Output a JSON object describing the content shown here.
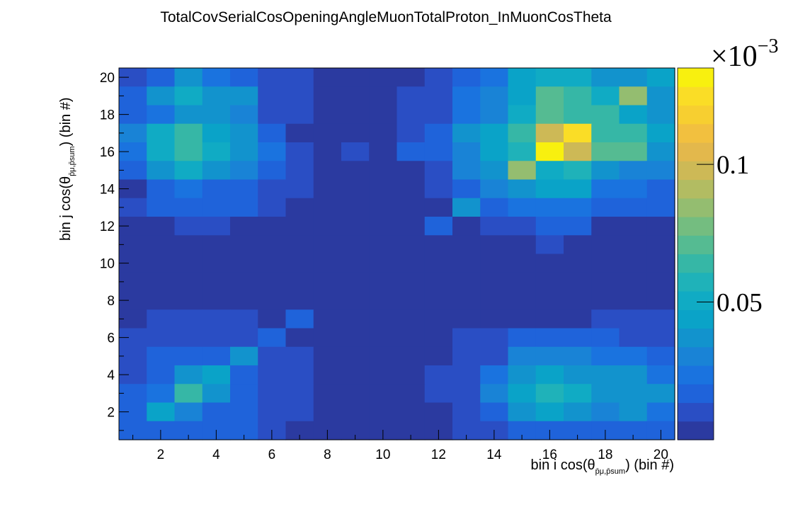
{
  "chart_data": {
    "type": "heatmap",
    "title": "TotalCovSerialCosOpeningAngleMuonTotalProton_InMuonCosTheta",
    "xlabel": "bin i cos(θ",
    "xlabel_sub": "p̄μ,p̄sum",
    "xlabel_tail": ") (bin #)",
    "ylabel": "bin j cos(θ",
    "ylabel_sub": "p̄μ,p̄sum",
    "ylabel_tail": ") (bin #)",
    "x_range": [
      0.5,
      20.5
    ],
    "y_range": [
      0.5,
      20.5
    ],
    "x_tick_labels": [
      "2",
      "4",
      "6",
      "8",
      "10",
      "12",
      "14",
      "16",
      "18",
      "20"
    ],
    "y_tick_labels": [
      "2",
      "4",
      "6",
      "8",
      "10",
      "12",
      "14",
      "16",
      "18",
      "20"
    ],
    "z_exponent_base": "×10",
    "z_exponent": "−3",
    "z_range": [
      0.0,
      0.135
    ],
    "z_tick_labels": [
      "0.05",
      "0.1"
    ],
    "z_tick_values": [
      0.05,
      0.1
    ],
    "palette": [
      "#2b3aa0",
      "#2a4ec4",
      "#1f63da",
      "#1a73df",
      "#1983d6",
      "#1293cd",
      "#0aa3c8",
      "#10abc4",
      "#1fb2b9",
      "#36b7a6",
      "#55bb92",
      "#74bd80",
      "#94bd70",
      "#b2bc62",
      "#cdb956",
      "#e3b84c",
      "#f2c03f",
      "#f7cf30",
      "#fadd26",
      "#f8f00f"
    ],
    "matrix_rows_top_to_bottom": [
      [
        0.012,
        0.018,
        0.038,
        0.024,
        0.018,
        0.008,
        0.008,
        0.002,
        0.002,
        0.002,
        0.002,
        0.01,
        0.018,
        0.026,
        0.042,
        0.05,
        0.052,
        0.038,
        0.04,
        0.042
      ],
      [
        0.018,
        0.04,
        0.052,
        0.04,
        0.034,
        0.012,
        0.008,
        0.002,
        0.002,
        0.002,
        0.008,
        0.008,
        0.026,
        0.032,
        0.046,
        0.072,
        0.062,
        0.048,
        0.082,
        0.036
      ],
      [
        0.014,
        0.026,
        0.034,
        0.034,
        0.028,
        0.012,
        0.008,
        0.002,
        0.002,
        0.002,
        0.008,
        0.008,
        0.026,
        0.032,
        0.052,
        0.072,
        0.062,
        0.062,
        0.046,
        0.036
      ],
      [
        0.03,
        0.048,
        0.062,
        0.046,
        0.04,
        0.016,
        0.006,
        0.006,
        0.006,
        0.002,
        0.008,
        0.016,
        0.034,
        0.046,
        0.064,
        0.1,
        0.128,
        0.062,
        0.062,
        0.046
      ],
      [
        0.024,
        0.05,
        0.066,
        0.048,
        0.04,
        0.022,
        0.012,
        0.002,
        0.008,
        0.002,
        0.014,
        0.014,
        0.028,
        0.046,
        0.056,
        0.135,
        0.1,
        0.072,
        0.072,
        0.04
      ],
      [
        0.014,
        0.04,
        0.048,
        0.036,
        0.03,
        0.02,
        0.012,
        0.002,
        0.002,
        0.002,
        0.002,
        0.008,
        0.028,
        0.034,
        0.086,
        0.054,
        0.058,
        0.04,
        0.03,
        0.028
      ],
      [
        0.004,
        0.02,
        0.026,
        0.018,
        0.018,
        0.01,
        0.008,
        0.002,
        0.002,
        0.002,
        0.002,
        0.008,
        0.018,
        0.03,
        0.034,
        0.044,
        0.046,
        0.026,
        0.026,
        0.02
      ],
      [
        0.012,
        0.014,
        0.014,
        0.014,
        0.014,
        0.01,
        0.002,
        0.002,
        0.002,
        0.002,
        0.002,
        0.002,
        0.036,
        0.018,
        0.024,
        0.024,
        0.024,
        0.02,
        0.02,
        0.016
      ],
      [
        0.002,
        0.002,
        0.008,
        0.008,
        0.002,
        0.002,
        0.002,
        0.002,
        0.002,
        0.002,
        0.002,
        0.014,
        0.002,
        0.008,
        0.008,
        0.014,
        0.014,
        0.006,
        0.006,
        0.006
      ],
      [
        0.002,
        0.002,
        0.002,
        0.002,
        0.002,
        0.002,
        0.002,
        0.002,
        0.002,
        0.002,
        0.002,
        0.002,
        0.002,
        0.002,
        0.002,
        0.012,
        0.006,
        0.006,
        0.006,
        0.002
      ],
      [
        0.002,
        0.002,
        0.002,
        0.002,
        0.002,
        0.002,
        0.002,
        0.002,
        0.002,
        0.002,
        0.002,
        0.002,
        0.002,
        0.002,
        0.002,
        0.002,
        0.002,
        0.002,
        0.002,
        0.002
      ],
      [
        0.002,
        0.002,
        0.002,
        0.002,
        0.002,
        0.002,
        0.002,
        0.002,
        0.002,
        0.002,
        0.002,
        0.002,
        0.002,
        0.002,
        0.002,
        0.006,
        0.006,
        0.002,
        0.002,
        0.002
      ],
      [
        0.002,
        0.002,
        0.002,
        0.002,
        0.002,
        0.002,
        0.002,
        0.002,
        0.002,
        0.002,
        0.002,
        0.002,
        0.002,
        0.002,
        0.002,
        0.002,
        0.006,
        0.002,
        0.002,
        0.002
      ],
      [
        0.002,
        0.008,
        0.008,
        0.008,
        0.008,
        0.002,
        0.014,
        0.002,
        0.002,
        0.002,
        0.002,
        0.002,
        0.002,
        0.002,
        0.006,
        0.006,
        0.006,
        0.008,
        0.008,
        0.008
      ],
      [
        0.008,
        0.012,
        0.012,
        0.012,
        0.008,
        0.016,
        0.002,
        0.002,
        0.002,
        0.002,
        0.002,
        0.002,
        0.008,
        0.008,
        0.018,
        0.018,
        0.018,
        0.014,
        0.012,
        0.008
      ],
      [
        0.012,
        0.018,
        0.018,
        0.018,
        0.034,
        0.008,
        0.008,
        0.002,
        0.002,
        0.002,
        0.002,
        0.002,
        0.012,
        0.012,
        0.028,
        0.032,
        0.032,
        0.026,
        0.022,
        0.016
      ],
      [
        0.012,
        0.016,
        0.034,
        0.044,
        0.016,
        0.012,
        0.008,
        0.002,
        0.002,
        0.002,
        0.002,
        0.008,
        0.012,
        0.024,
        0.038,
        0.042,
        0.04,
        0.034,
        0.034,
        0.022
      ],
      [
        0.016,
        0.026,
        0.064,
        0.034,
        0.02,
        0.012,
        0.008,
        0.002,
        0.002,
        0.002,
        0.002,
        0.008,
        0.012,
        0.032,
        0.042,
        0.058,
        0.052,
        0.034,
        0.04,
        0.036
      ],
      [
        0.018,
        0.044,
        0.028,
        0.02,
        0.02,
        0.012,
        0.008,
        0.002,
        0.002,
        0.002,
        0.002,
        0.002,
        0.012,
        0.02,
        0.034,
        0.046,
        0.04,
        0.03,
        0.034,
        0.024
      ],
      [
        0.016,
        0.014,
        0.014,
        0.014,
        0.014,
        0.008,
        0.002,
        0.002,
        0.002,
        0.002,
        0.002,
        0.002,
        0.012,
        0.008,
        0.014,
        0.018,
        0.018,
        0.014,
        0.016,
        0.016
      ]
    ]
  }
}
